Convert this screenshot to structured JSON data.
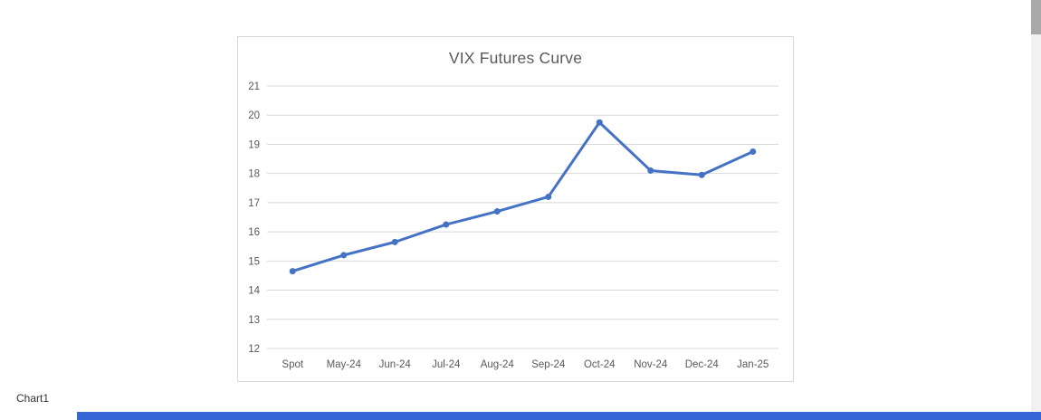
{
  "window": {
    "sheet_tab_label": "Chart1"
  },
  "ui_colors": {
    "bottom_bar": "#3566D6",
    "scrollbar_track": "#F1F1F1",
    "scrollbar_thumb": "#A9A9A9",
    "chart_border": "#D7D7D7"
  },
  "chart_data": {
    "type": "line",
    "title": "VIX Futures Curve",
    "categories": [
      "Spot",
      "May-24",
      "Jun-24",
      "Jul-24",
      "Aug-24",
      "Sep-24",
      "Oct-24",
      "Nov-24",
      "Dec-24",
      "Jan-25"
    ],
    "values": [
      14.65,
      15.2,
      15.65,
      16.25,
      16.7,
      17.2,
      19.75,
      18.1,
      17.95,
      18.75
    ],
    "ylim": [
      12,
      21
    ],
    "ytick_interval": 1,
    "grid": true,
    "legend": "none",
    "colors": {
      "line": "#4472C4",
      "title": "#595959",
      "axis_text": "#595959",
      "gridline": "#D9D9D9"
    }
  }
}
